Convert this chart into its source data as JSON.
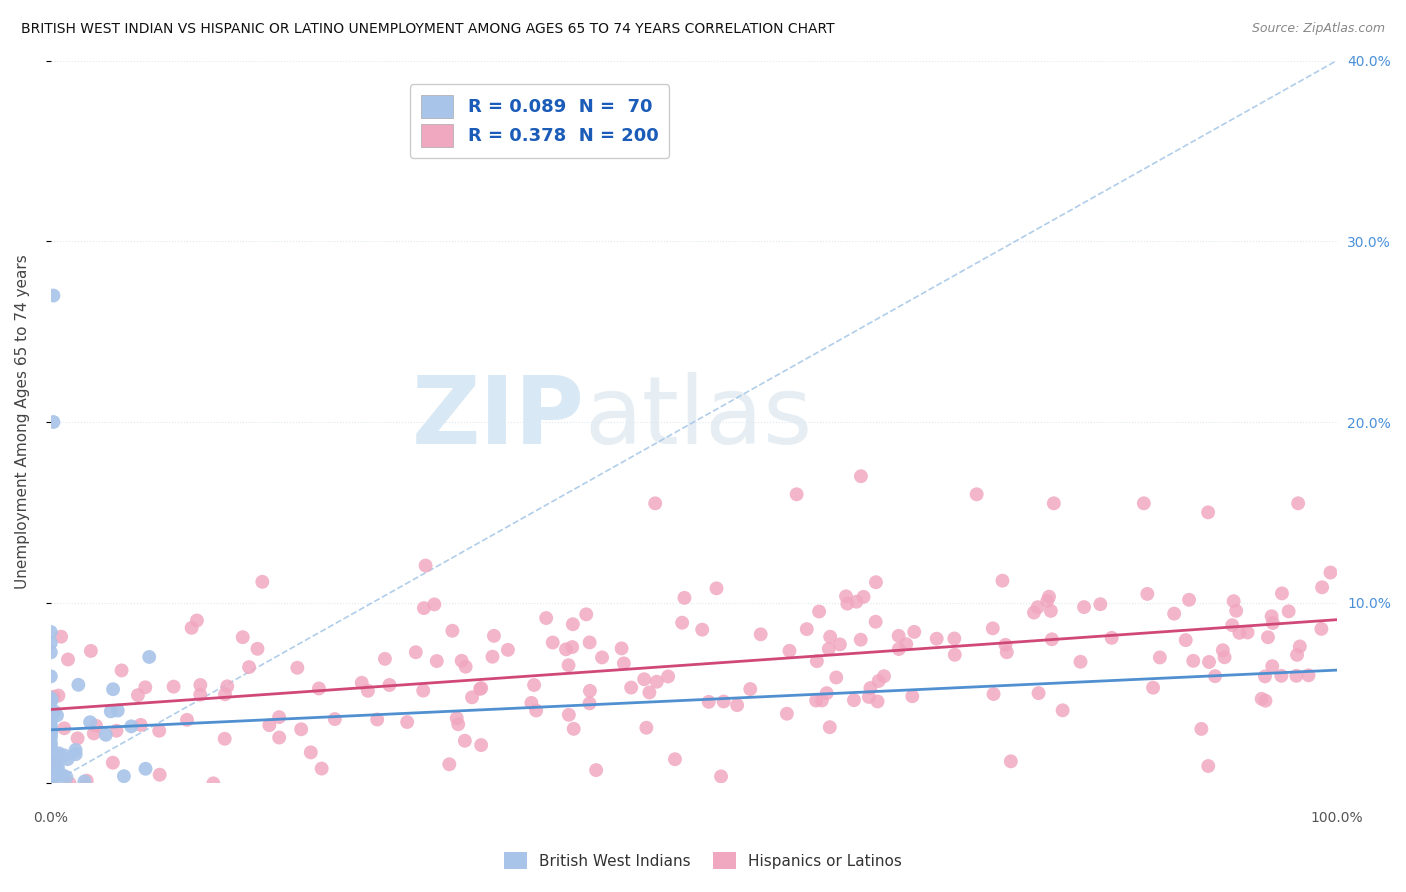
{
  "title": "BRITISH WEST INDIAN VS HISPANIC OR LATINO UNEMPLOYMENT AMONG AGES 65 TO 74 YEARS CORRELATION CHART",
  "source": "Source: ZipAtlas.com",
  "ylabel": "Unemployment Among Ages 65 to 74 years",
  "xlim": [
    0,
    1.0
  ],
  "ylim": [
    0,
    0.4
  ],
  "legend_labels": [
    "British West Indians",
    "Hispanics or Latinos"
  ],
  "blue_R": 0.089,
  "blue_N": 70,
  "pink_R": 0.378,
  "pink_N": 200,
  "blue_color": "#a8c4e8",
  "pink_color": "#f0a8c0",
  "blue_line_color": "#5090d0",
  "pink_line_color": "#d04878",
  "dash_line_color": "#a8c8e8",
  "watermark_zip": "ZIP",
  "watermark_atlas": "atlas",
  "title_fontsize": 10,
  "source_fontsize": 9,
  "legend_text_color": "#1a5cb8",
  "right_axis_color": "#4a90d9",
  "grid_color": "#e0e8f0",
  "background_color": "#ffffff"
}
